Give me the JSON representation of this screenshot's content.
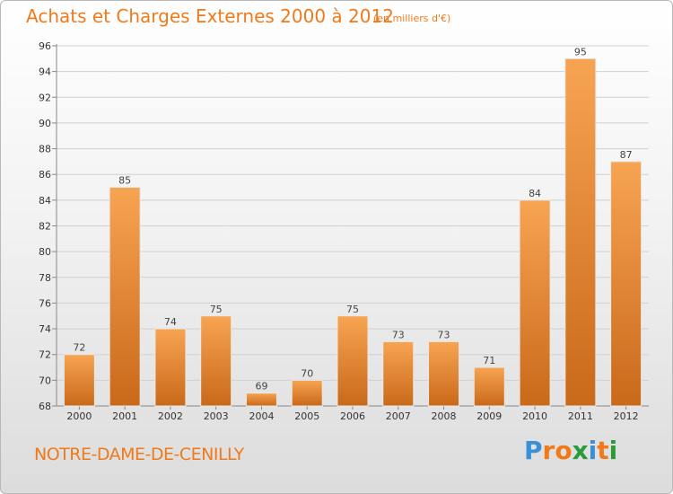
{
  "header": {
    "title": "Achats et Charges Externes 2000 à 2012",
    "unit": "(en milliers d'€)"
  },
  "footer": {
    "location": "NOTRE-DAME-DE-CENILLY",
    "brand_letters": [
      "P",
      "r",
      "o",
      "x",
      "i",
      "t",
      "i"
    ],
    "brand_colors": [
      "#3a8fd6",
      "#f07a1a",
      "#f07a1a",
      "#2a9a3a",
      "#3a8fd6",
      "#f07a1a",
      "#2a9a3a"
    ]
  },
  "chart_data": {
    "type": "bar",
    "categories": [
      "2000",
      "2001",
      "2002",
      "2003",
      "2004",
      "2005",
      "2006",
      "2007",
      "2008",
      "2009",
      "2010",
      "2011",
      "2012"
    ],
    "values": [
      72,
      85,
      74,
      75,
      69,
      70,
      75,
      73,
      73,
      71,
      84,
      95,
      87
    ],
    "ylim": [
      68,
      96
    ],
    "yticks": [
      68,
      70,
      72,
      74,
      76,
      78,
      80,
      82,
      84,
      86,
      88,
      90,
      92,
      94,
      96
    ],
    "grid": true,
    "bar_color_top": "#f7a452",
    "bar_color_bottom": "#c9691a",
    "title": "Achats et Charges Externes 2000 à 2012",
    "xlabel": "",
    "ylabel": ""
  }
}
